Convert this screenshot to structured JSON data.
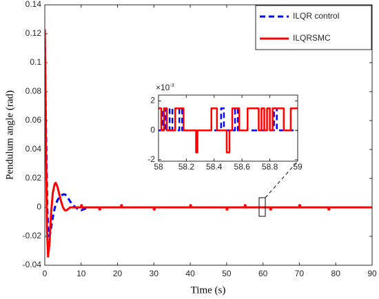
{
  "chart_data": [
    {
      "type": "line",
      "xlabel": "Time (s)",
      "ylabel": "Pendulum angle (rad)",
      "xlim": [
        0,
        90
      ],
      "xticks": [
        0,
        10,
        20,
        30,
        40,
        50,
        60,
        70,
        80,
        90
      ],
      "ylim": [
        -0.04,
        0.14
      ],
      "yticks": [
        -0.04,
        -0.02,
        0,
        0.02,
        0.04,
        0.06,
        0.08,
        0.1,
        0.12,
        0.14
      ],
      "legend": "upper right",
      "series": [
        {
          "name": "ILQR control",
          "color": "#0000ff",
          "style": "dashed",
          "x": [
            0,
            0.3,
            0.7,
            1,
            1.5,
            2,
            2.5,
            3,
            3.5,
            4,
            4.5,
            5,
            5.5,
            6,
            6.5,
            7,
            8,
            9,
            10,
            11,
            12,
            15,
            20,
            30,
            40,
            50,
            60,
            70,
            80,
            82
          ],
          "values": [
            0.123,
            0.06,
            0.0,
            -0.02,
            -0.018,
            -0.01,
            -0.003,
            0.002,
            0.005,
            0.007,
            0.008,
            0.009,
            0.009,
            0.008,
            0.006,
            0.004,
            0.001,
            -0.001,
            -0.002,
            -0.001,
            0,
            0,
            0,
            0,
            0,
            0,
            0,
            0,
            0,
            0
          ]
        },
        {
          "name": "ILQRSMC",
          "color": "#ff0000",
          "style": "solid",
          "x": [
            0,
            0.3,
            0.6,
            0.9,
            1.3,
            1.7,
            2.2,
            2.7,
            3,
            3.5,
            4,
            4.5,
            5,
            5.5,
            6,
            6.5,
            7,
            8,
            10,
            10,
            10.2,
            10.2,
            15,
            15,
            15.2,
            15.2,
            21,
            21,
            21.2,
            21.2,
            30,
            30,
            30.2,
            30.2,
            40,
            40,
            40.2,
            40.2,
            50,
            50,
            50.2,
            50.2,
            55,
            55,
            55.2,
            55.2,
            62,
            62,
            62.2,
            62.2,
            70,
            70,
            70.2,
            70.2,
            78,
            78,
            78.2,
            78.2,
            90
          ],
          "values": [
            0.123,
            0.05,
            -0.015,
            -0.034,
            -0.025,
            -0.005,
            0.01,
            0.016,
            0.017,
            0.014,
            0.009,
            0.004,
            0,
            -0.002,
            -0.002,
            -0.001,
            0,
            0,
            0,
            0.0015,
            0.0015,
            0,
            0,
            -0.0015,
            -0.0015,
            0,
            0,
            0.0015,
            0.0015,
            0,
            0,
            -0.0015,
            -0.0015,
            0,
            0,
            0.0015,
            0.0015,
            0,
            0,
            -0.0015,
            -0.0015,
            0,
            0,
            0.0015,
            0.0015,
            0,
            0,
            -0.0015,
            -0.0015,
            0,
            0,
            0.0015,
            0.0015,
            0,
            0,
            -0.0015,
            -0.0015,
            0,
            0
          ]
        }
      ]
    },
    {
      "type": "line",
      "xlim": [
        58,
        59
      ],
      "xticks": [
        58,
        58.2,
        58.4,
        58.6,
        58.8,
        59
      ],
      "ylim": [
        -2.1,
        2.4
      ],
      "yticks": [
        -2,
        0,
        2
      ],
      "y_multiplier": {
        "base": "×10",
        "power": "-3"
      },
      "series": [
        {
          "color": "#0000ff",
          "style": "dashed",
          "x": [
            58,
            58.03,
            58.03,
            58.05,
            58.05,
            58.08,
            58.08,
            58.1,
            58.1,
            58.15,
            58.15,
            58.17,
            58.17,
            58.45,
            58.45,
            58.47,
            58.47,
            58.55,
            58.55,
            58.57,
            58.57,
            58.83,
            58.83,
            58.85,
            58.85,
            59
          ],
          "values": [
            0,
            0,
            1.5,
            1.5,
            0,
            0,
            1.5,
            1.5,
            0,
            0,
            1.5,
            1.5,
            0,
            0,
            1.5,
            1.5,
            0,
            0,
            1.5,
            1.5,
            0,
            0,
            1.5,
            1.5,
            0,
            0
          ]
        },
        {
          "color": "#ff0000",
          "style": "solid",
          "x": [
            58,
            58.02,
            58.02,
            58.04,
            58.04,
            58.06,
            58.06,
            58.12,
            58.12,
            58.18,
            58.18,
            58.27,
            58.27,
            58.28,
            58.28,
            58.38,
            58.38,
            58.42,
            58.42,
            58.49,
            58.49,
            58.51,
            58.51,
            58.53,
            58.53,
            58.58,
            58.58,
            58.64,
            58.64,
            58.72,
            58.72,
            58.74,
            58.74,
            58.76,
            58.76,
            58.78,
            58.78,
            58.8,
            58.8,
            58.82,
            58.82,
            58.9,
            58.9,
            58.95,
            58.95,
            59
          ],
          "values": [
            1.5,
            1.5,
            0,
            0,
            1.5,
            1.5,
            0,
            0,
            1.5,
            1.5,
            0,
            0,
            -1.5,
            -1.5,
            0,
            0,
            1.5,
            1.5,
            0,
            0,
            -1.5,
            -1.5,
            0,
            0,
            1.5,
            1.5,
            0,
            0,
            1.5,
            1.5,
            0,
            0,
            1.5,
            1.5,
            0,
            0,
            1.5,
            1.5,
            0,
            0,
            1.5,
            1.5,
            0,
            0,
            1.5,
            1.5
          ]
        }
      ]
    }
  ]
}
